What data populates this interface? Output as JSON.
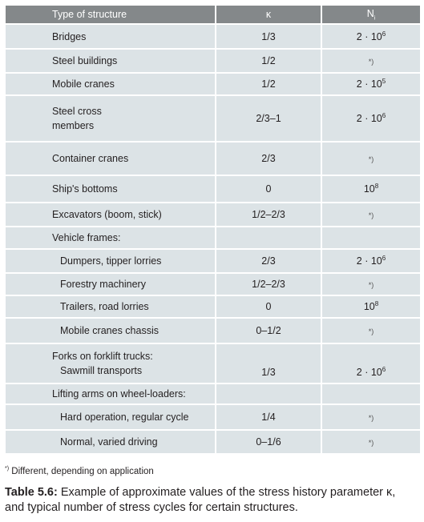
{
  "table": {
    "header": {
      "structure": "Type of structure",
      "kappa": "κ",
      "n": {
        "text": "N",
        "sub": "i"
      }
    },
    "rows": [
      {
        "structure": [
          "Bridges"
        ],
        "kappa": "1/3",
        "n": {
          "base": "2 · 10",
          "exp": "6"
        }
      },
      {
        "structure": [
          "Steel buildings"
        ],
        "kappa": "1/2",
        "n": {
          "mark": "*)"
        }
      },
      {
        "structure": [
          "Mobile cranes"
        ],
        "kappa": "1/2",
        "n": {
          "base": "2 · 10",
          "exp": "5"
        }
      },
      {
        "structure": [
          "Steel cross",
          "members"
        ],
        "kappa": "2/3–1",
        "n": {
          "base": "2 · 10",
          "exp": "6"
        }
      },
      {
        "structure": [
          "Container cranes"
        ],
        "kappa": "2/3",
        "n": {
          "mark": "*)"
        }
      },
      {
        "structure": [
          "Ship's bottoms"
        ],
        "kappa": "0",
        "n": {
          "base": "10",
          "exp": "8"
        }
      },
      {
        "structure": [
          "Excavators (boom, stick)"
        ],
        "kappa": "1/2–2/3",
        "n": {
          "mark": "*)"
        }
      },
      {
        "structure": [
          "Vehicle frames:"
        ]
      },
      {
        "structure": [
          "Dumpers, tipper lorries"
        ],
        "kappa": "2/3",
        "n": {
          "base": "2 · 10",
          "exp": "6"
        }
      },
      {
        "structure": [
          "Forestry machinery"
        ],
        "kappa": "1/2–2/3",
        "n": {
          "mark": "*)"
        }
      },
      {
        "structure": [
          "Trailers, road lorries"
        ],
        "kappa": "0",
        "n": {
          "base": "10",
          "exp": "8"
        }
      },
      {
        "structure": [
          "Mobile cranes chassis"
        ],
        "kappa": "0–1/2",
        "n": {
          "mark": "*)"
        }
      },
      {
        "structure": [
          "Forks on forklift trucks:",
          "Sawmill transports"
        ],
        "kappa": "1/3",
        "n": {
          "base": "2 · 10",
          "exp": "6"
        }
      },
      {
        "structure": [
          "Lifting arms on wheel-loaders:"
        ]
      },
      {
        "structure": [
          "Hard operation, regular cycle"
        ],
        "kappa": "1/4",
        "n": {
          "mark": "*)"
        }
      },
      {
        "structure": [
          "Normal, varied driving"
        ],
        "kappa": "0–1/6",
        "n": {
          "mark": "*)"
        }
      }
    ]
  },
  "footnote": {
    "mark": "*)",
    "text": "Different, depending on application"
  },
  "caption": {
    "label": "Table 5.6:",
    "text": "Example of approximate values of the stress history parameter κ, and typical number of stress cycles for certain structures."
  }
}
